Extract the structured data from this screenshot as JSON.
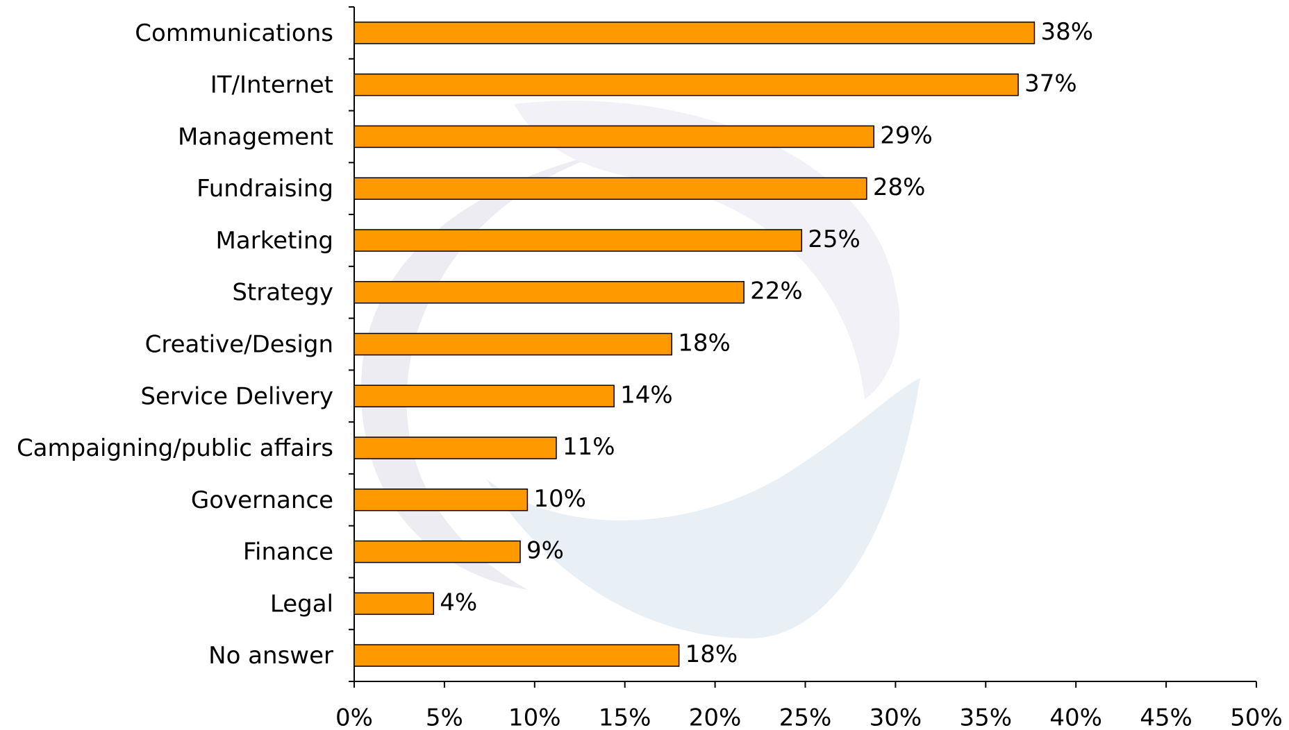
{
  "chart_data": {
    "type": "bar",
    "orientation": "horizontal",
    "categories": [
      "Communications",
      "IT/Internet",
      "Management",
      "Fundraising",
      "Marketing",
      "Strategy",
      "Creative/Design",
      "Service Delivery",
      "Campaigning/public affairs",
      "Governance",
      "Finance",
      "Legal",
      "No answer"
    ],
    "values": [
      37.7,
      36.8,
      28.8,
      28.4,
      24.8,
      21.6,
      17.6,
      14.4,
      11.2,
      9.6,
      9.2,
      4.4,
      18.0
    ],
    "value_labels": [
      "38%",
      "37%",
      "29%",
      "28%",
      "25%",
      "22%",
      "18%",
      "14%",
      "11%",
      "10%",
      "9%",
      "4%",
      "18%"
    ],
    "color": "#ff9900",
    "xlim": [
      0,
      50
    ],
    "xticks": [
      {
        "value": 0,
        "label": "0%"
      },
      {
        "value": 5,
        "label": "5%"
      },
      {
        "value": 10,
        "label": "10%"
      },
      {
        "value": 15,
        "label": "15%"
      },
      {
        "value": 20,
        "label": "20%"
      },
      {
        "value": 25,
        "label": "25%"
      },
      {
        "value": 30,
        "label": "30%"
      },
      {
        "value": 35,
        "label": "35%"
      },
      {
        "value": 40,
        "label": "40%"
      },
      {
        "value": 45,
        "label": "45%"
      },
      {
        "value": 50,
        "label": "50%"
      }
    ],
    "grid": false
  }
}
